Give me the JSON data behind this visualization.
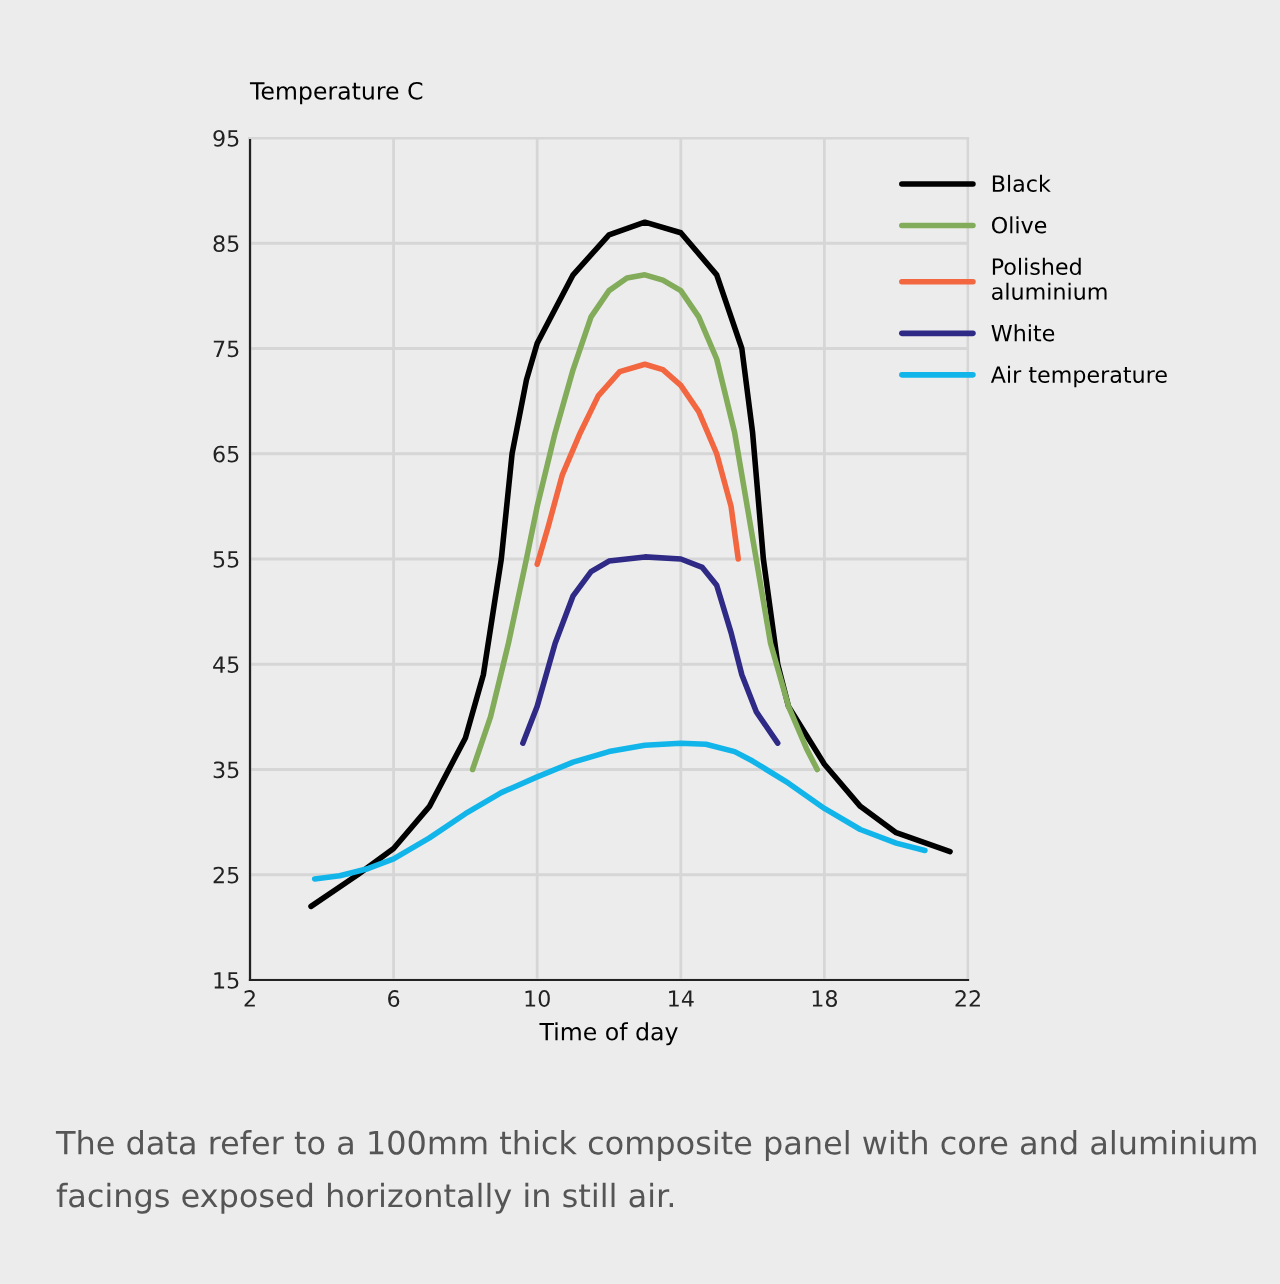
{
  "chart_data": {
    "type": "line",
    "ylabel": "Temperature C",
    "xlabel": "Time of day",
    "xlim": [
      2,
      22
    ],
    "xticks": [
      2,
      6,
      10,
      14,
      18,
      22
    ],
    "ylim": [
      15,
      95
    ],
    "yticks": [
      15,
      25,
      35,
      45,
      55,
      65,
      75,
      85,
      95
    ],
    "grid": true,
    "legend": "right",
    "line_style": "solid",
    "marker": "none",
    "series": [
      {
        "name": "Black",
        "color": "#000000",
        "x": [
          3.7,
          5,
          6,
          7,
          8,
          8.5,
          9,
          9.3,
          9.7,
          10,
          11,
          12,
          13,
          14,
          15,
          15.7,
          16,
          16.3,
          16.7,
          17,
          18,
          19,
          20,
          21.5
        ],
        "values": [
          22,
          25,
          27.5,
          31.5,
          38,
          44,
          55,
          65,
          72,
          75.5,
          82,
          85.8,
          87,
          86,
          82,
          75,
          67,
          55,
          45,
          41,
          35.5,
          31.5,
          29,
          27.2
        ]
      },
      {
        "name": "Olive",
        "color": "#82ab5a",
        "x": [
          8.2,
          8.7,
          9.2,
          9.7,
          10,
          10.5,
          11,
          11.5,
          12,
          12.5,
          13,
          13.5,
          14,
          14.5,
          15,
          15.5,
          16,
          16.5,
          17,
          17.5,
          17.8
        ],
        "values": [
          35,
          40,
          47,
          55,
          60,
          67,
          73,
          78,
          80.5,
          81.7,
          82,
          81.5,
          80.5,
          78,
          74,
          67,
          57,
          47,
          41,
          37,
          35
        ]
      },
      {
        "name": "Polished\naluminium",
        "color": "#f26640",
        "x": [
          10,
          10.3,
          10.7,
          11.2,
          11.7,
          12.3,
          13,
          13.5,
          14,
          14.5,
          15,
          15.4,
          15.6
        ],
        "values": [
          54.5,
          58,
          63,
          67,
          70.5,
          72.8,
          73.5,
          73,
          71.5,
          69,
          65,
          60,
          55
        ]
      },
      {
        "name": "White",
        "color": "#2e2a85",
        "x": [
          9.6,
          10,
          10.5,
          11,
          11.5,
          12,
          13,
          14,
          14.6,
          15,
          15.4,
          15.7,
          16.1,
          16.7
        ],
        "values": [
          37.5,
          41,
          47,
          51.5,
          53.8,
          54.8,
          55.2,
          55,
          54.2,
          52.5,
          48,
          44,
          40.5,
          37.5
        ]
      },
      {
        "name": "Air temperature",
        "color": "#12b5ea",
        "x": [
          3.8,
          4.5,
          5.3,
          6,
          7,
          8,
          9,
          10,
          11,
          12,
          13,
          14,
          14.7,
          15.5,
          16,
          17,
          18,
          19,
          20,
          20.8
        ],
        "values": [
          24.6,
          24.9,
          25.6,
          26.5,
          28.5,
          30.8,
          32.8,
          34.3,
          35.7,
          36.7,
          37.3,
          37.5,
          37.4,
          36.7,
          35.8,
          33.7,
          31.3,
          29.3,
          28,
          27.3
        ]
      }
    ],
    "annotations": [
      "The data refer to a 100mm thick composite panel with core and aluminium facings exposed horizontally in still air."
    ]
  }
}
